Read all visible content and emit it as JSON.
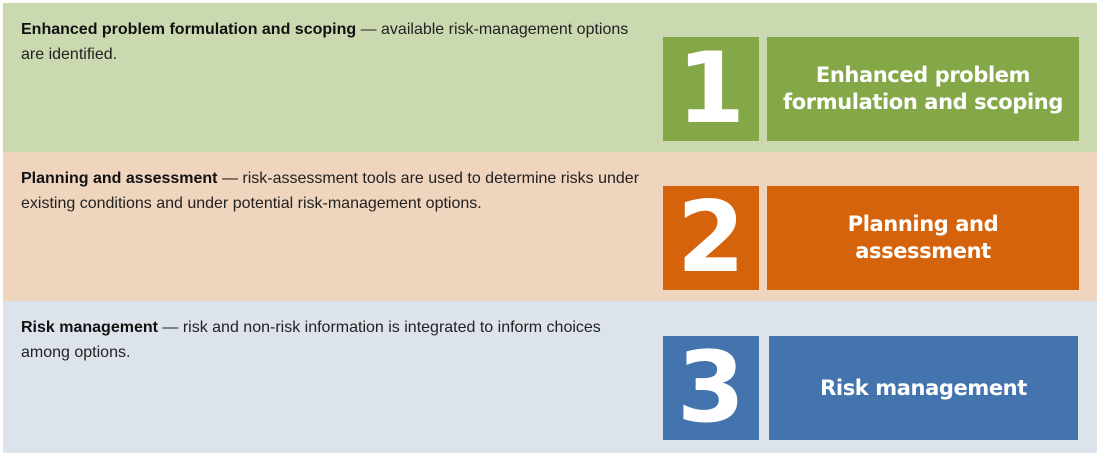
{
  "colors": {
    "step1_band": "#cbd9b1",
    "step1_box": "#84a747",
    "step2_band": "#efd4be",
    "step2_box": "#d4630b",
    "step3_band": "#dde3ea",
    "step3_box": "#4474ae"
  },
  "steps": [
    {
      "number": "1",
      "title": "Enhanced problem formulation and scoping",
      "description": " — available risk-management options are identified.",
      "box_label_line1": "Enhanced problem",
      "box_label_line2": "formulation and scoping"
    },
    {
      "number": "2",
      "title": "Planning and assessment",
      "description": " — risk-assessment tools are used to determine risks under existing conditions and under potential risk-management options.",
      "box_label_line1": "Planning and assessment",
      "box_label_line2": ""
    },
    {
      "number": "3",
      "title": "Risk management",
      "description": " — risk and non-risk information is integrated to inform choices among options.",
      "box_label_line1": "Risk management",
      "box_label_line2": ""
    }
  ]
}
